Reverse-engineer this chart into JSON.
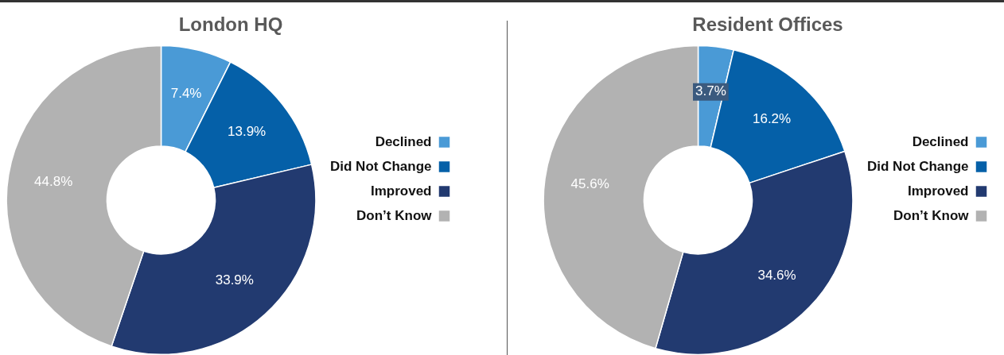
{
  "chart_data": [
    {
      "type": "donut",
      "title": "London HQ",
      "categories": [
        "Declined",
        "Did Not Change",
        "Improved",
        "Don’t Know"
      ],
      "values": [
        7.4,
        13.9,
        33.9,
        44.8
      ],
      "value_labels": [
        "7.4%",
        "13.9%",
        "33.9%",
        "44.8%"
      ],
      "colors": [
        "#4a9ad6",
        "#0560a8",
        "#223a70",
        "#b2b2b2"
      ],
      "legend": "right"
    },
    {
      "type": "donut",
      "title": "Resident Offices",
      "categories": [
        "Declined",
        "Did Not Change",
        "Improved",
        "Don’t Know"
      ],
      "values": [
        3.7,
        16.2,
        34.6,
        45.6
      ],
      "value_labels": [
        "3.7%",
        "16.2%",
        "34.6%",
        "45.6%"
      ],
      "colors": [
        "#4a9ad6",
        "#0560a8",
        "#223a70",
        "#b2b2b2"
      ],
      "legend": "right"
    }
  ]
}
